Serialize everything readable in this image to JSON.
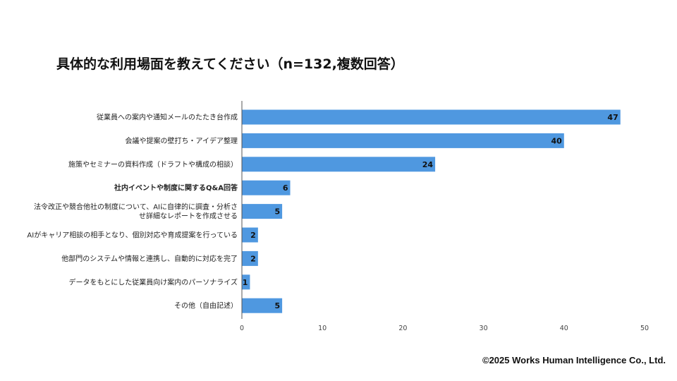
{
  "title": "具体的な利用場面を教えてください（n=132,複数回答）",
  "copyright": "©2025 Works Human Intelligence Co., Ltd.",
  "chart_data": {
    "type": "bar",
    "orientation": "horizontal",
    "categories": [
      [
        "従業員への案内や通知メールのたたき台作成"
      ],
      [
        "会議や提案の壁打ち・アイデア整理"
      ],
      [
        "施策やセミナーの資料作成（ドラフトや構成の相談）"
      ],
      [
        "社内イベントや制度に関するQ&A回答"
      ],
      [
        "法令改正や競合他社の制度について、AIに自律的に調査・分析さ",
        "せ詳細なレポートを作成させる"
      ],
      [
        "AIがキャリア相談の相手となり、個別対応や育成提案を行っている"
      ],
      [
        "他部門のシステムや情報と連携し、自動的に対応を完了"
      ],
      [
        "データをもとにした従業員向け案内のパーソナライズ"
      ],
      [
        "その他（自由記述）"
      ]
    ],
    "values": [
      47,
      40,
      24,
      6,
      5,
      2,
      2,
      1,
      5
    ],
    "xlim": [
      0,
      50
    ],
    "xticks": [
      0,
      10,
      20,
      30,
      40,
      50
    ],
    "bar_color": "#4f98e0",
    "axis_color": "#555555"
  }
}
